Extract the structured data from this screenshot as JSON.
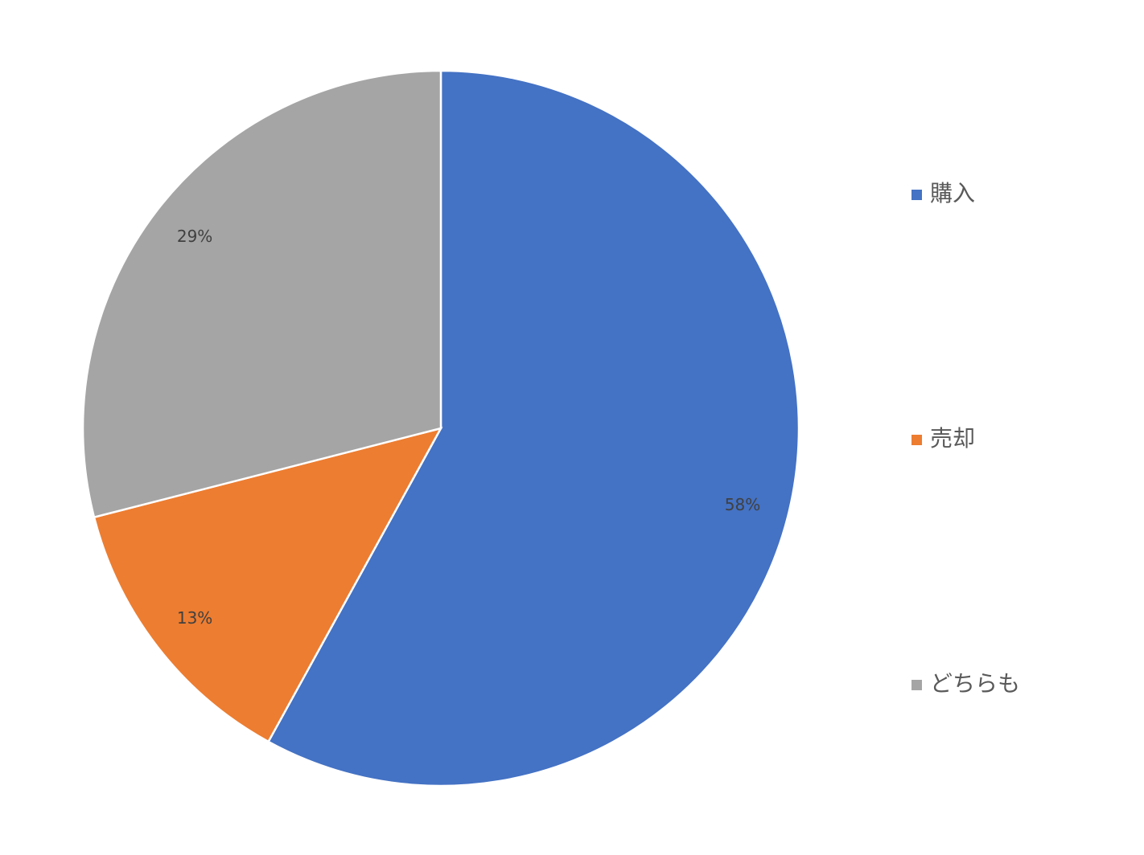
{
  "chart_data": {
    "type": "pie",
    "categories": [
      "購入",
      "売却",
      "どちらも"
    ],
    "values": [
      58,
      13,
      29
    ],
    "value_labels": [
      "58%",
      "13%",
      "29%"
    ],
    "colors": [
      "#4472c4",
      "#ed7d31",
      "#a5a5a5"
    ],
    "legend": "right"
  }
}
